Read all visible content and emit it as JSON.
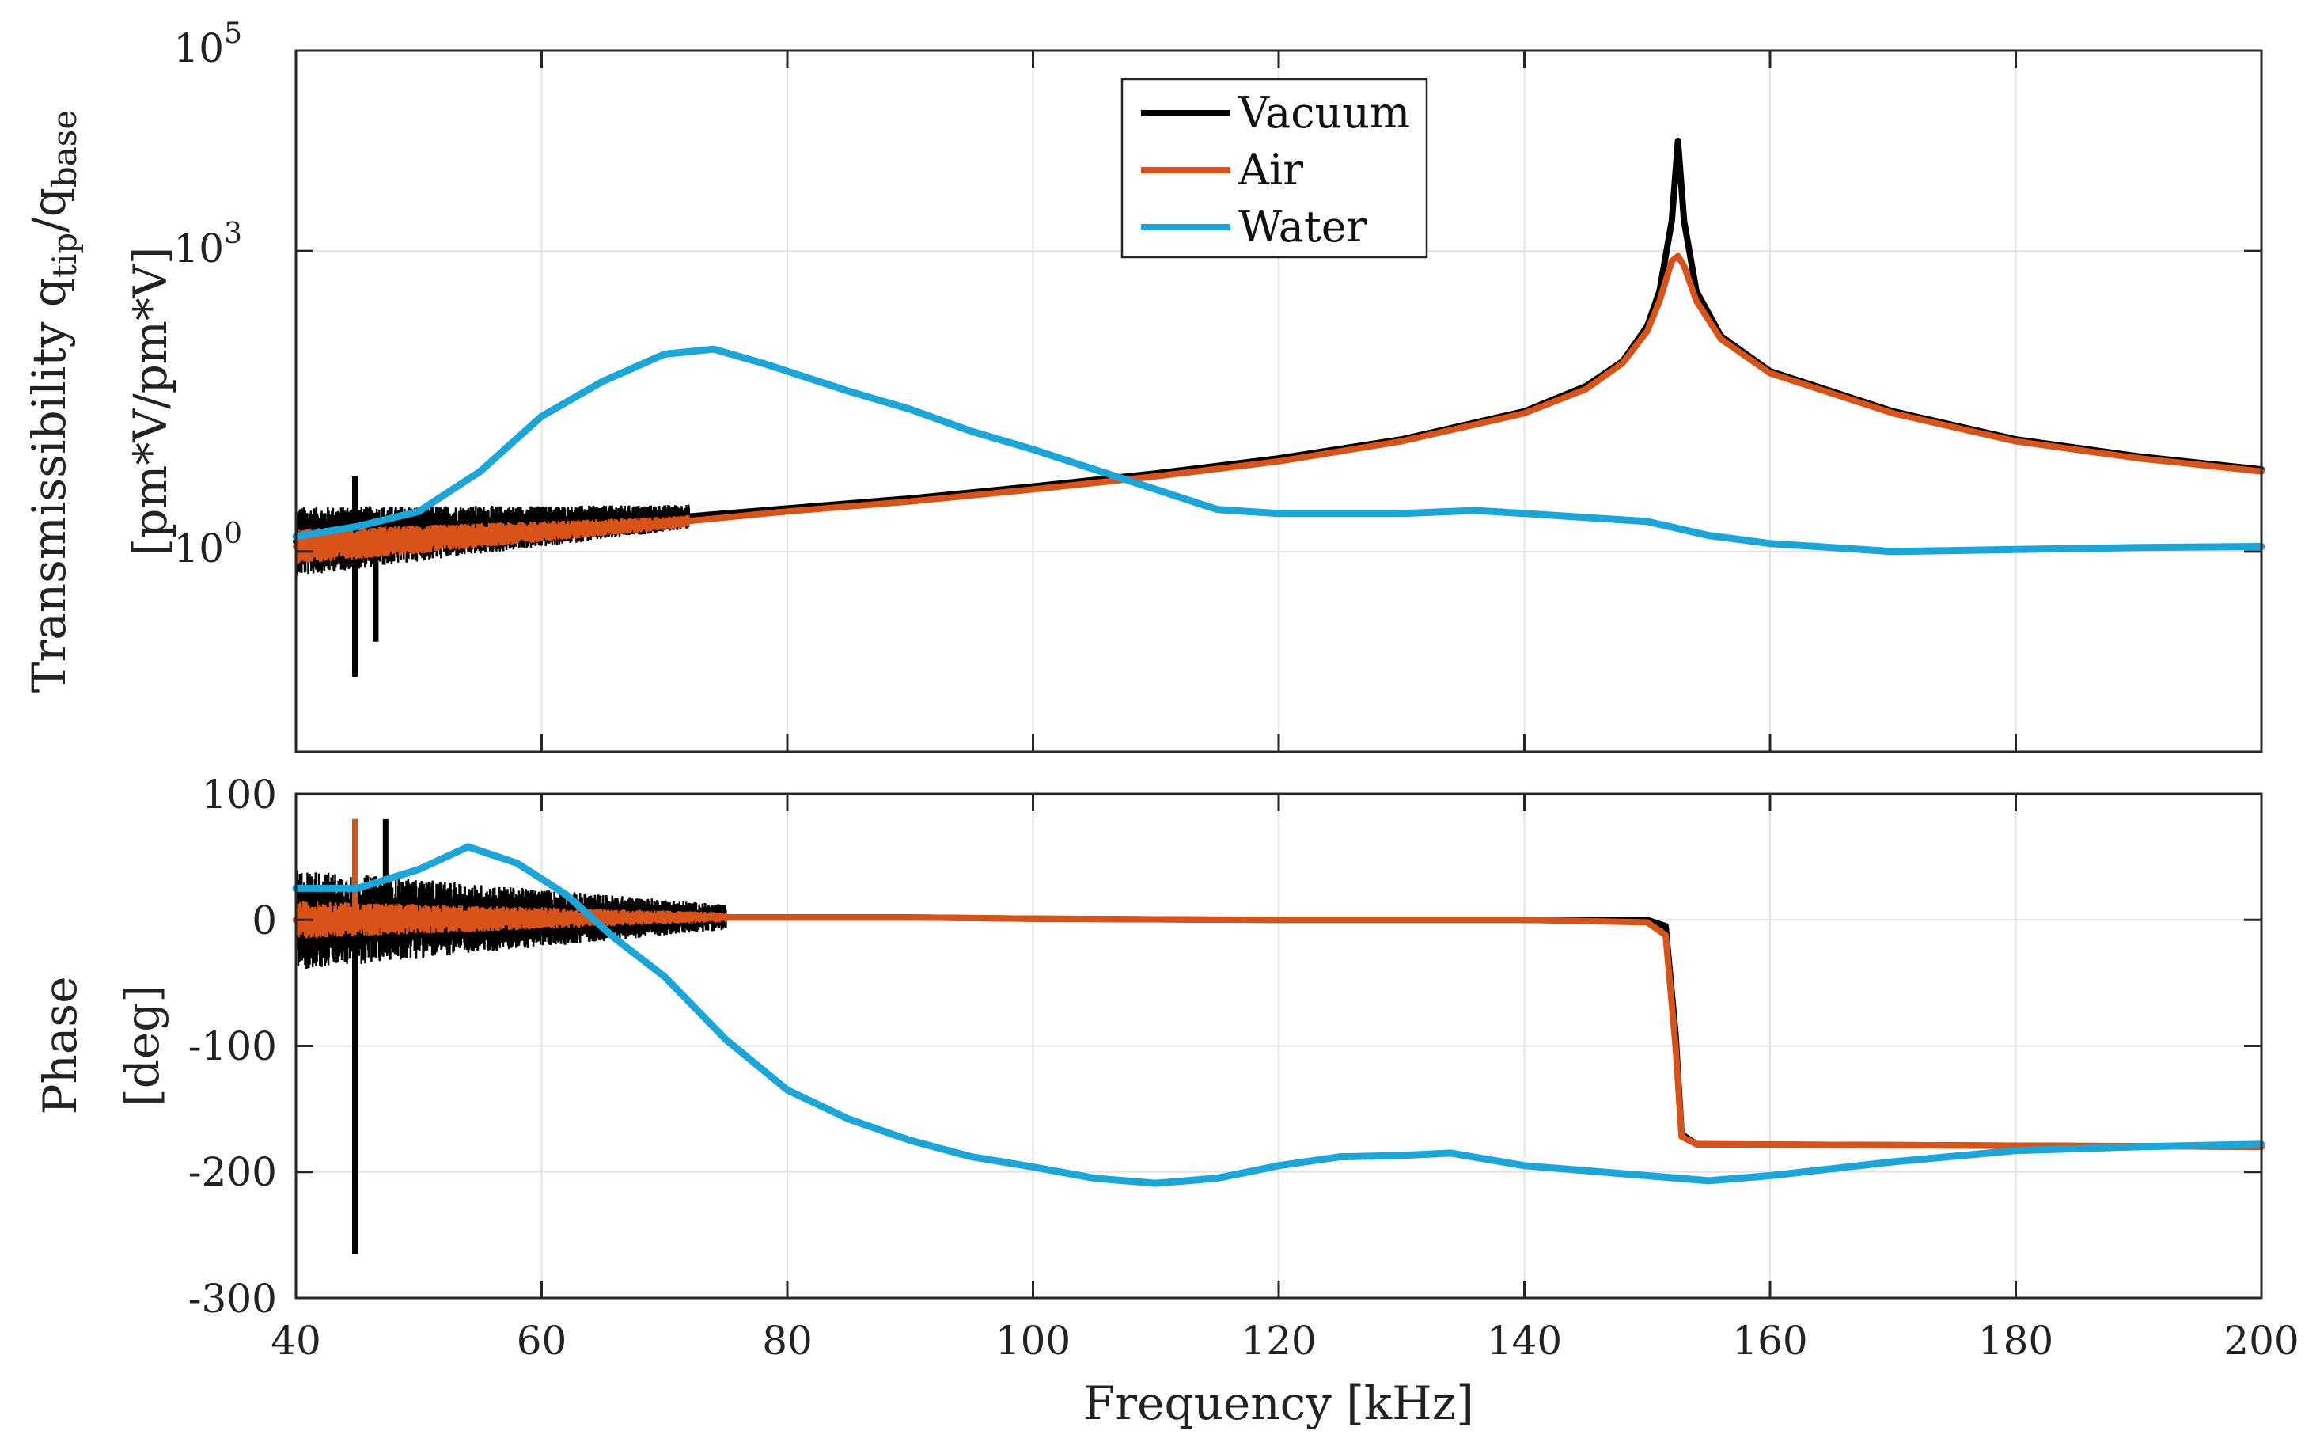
{
  "chart_data": [
    {
      "type": "line",
      "panel": "magnitude",
      "yscale": "log",
      "xlim": [
        40,
        200
      ],
      "ylim_exp": [
        -2,
        5
      ],
      "x_ticks": [
        40,
        60,
        80,
        100,
        120,
        140,
        160,
        180,
        200
      ],
      "y_ticks": [
        {
          "base": "10",
          "exp": "0",
          "value_exp": 0
        },
        {
          "base": "10",
          "exp": "3",
          "value_exp": 3
        },
        {
          "base": "10",
          "exp": "5",
          "value_exp": 5
        }
      ],
      "grid": true,
      "ylabel_line1_prefix": "Transmissibility q",
      "ylabel_sub1": "tip",
      "ylabel_mid": "/q",
      "ylabel_sub2": "base",
      "ylabel_line2": "[pm*V/pm*V]",
      "legend": {
        "position": "top-center",
        "entries": [
          {
            "label": "Vacuum",
            "color": "#000000"
          },
          {
            "label": "Air",
            "color": "#d95319"
          },
          {
            "label": "Water",
            "color": "#1aa6d8"
          }
        ]
      },
      "series": [
        {
          "name": "Vacuum",
          "color": "#000000",
          "noise_until_x": 72,
          "noise_amp_exp": [
            0.35,
            0.12
          ],
          "spikes": [
            [
              44.8,
              -1.25
            ],
            [
              46.5,
              -0.9
            ],
            [
              44.8,
              0.75
            ]
          ],
          "points": [
            [
              40,
              0.1
            ],
            [
              50,
              0.18
            ],
            [
              60,
              0.25
            ],
            [
              70,
              0.33
            ],
            [
              80,
              0.43
            ],
            [
              90,
              0.53
            ],
            [
              100,
              0.65
            ],
            [
              110,
              0.78
            ],
            [
              120,
              0.93
            ],
            [
              130,
              1.12
            ],
            [
              140,
              1.4
            ],
            [
              145,
              1.65
            ],
            [
              148,
              1.9
            ],
            [
              150,
              2.25
            ],
            [
              151,
              2.6
            ],
            [
              152,
              3.3
            ],
            [
              152.5,
              4.1
            ],
            [
              153,
              3.3
            ],
            [
              154,
              2.6
            ],
            [
              156,
              2.15
            ],
            [
              160,
              1.8
            ],
            [
              170,
              1.4
            ],
            [
              180,
              1.12
            ],
            [
              190,
              0.95
            ],
            [
              200,
              0.82
            ]
          ]
        },
        {
          "name": "Air",
          "color": "#d95319",
          "noise_until_x": 72,
          "noise_amp_exp": [
            0.18,
            0.06
          ],
          "spikes": [],
          "points": [
            [
              40,
              0.05
            ],
            [
              50,
              0.12
            ],
            [
              60,
              0.2
            ],
            [
              70,
              0.28
            ],
            [
              80,
              0.4
            ],
            [
              90,
              0.5
            ],
            [
              100,
              0.62
            ],
            [
              110,
              0.75
            ],
            [
              120,
              0.9
            ],
            [
              130,
              1.1
            ],
            [
              140,
              1.38
            ],
            [
              145,
              1.62
            ],
            [
              148,
              1.88
            ],
            [
              150,
              2.2
            ],
            [
              151,
              2.5
            ],
            [
              152,
              2.9
            ],
            [
              152.5,
              2.95
            ],
            [
              153,
              2.85
            ],
            [
              154,
              2.5
            ],
            [
              156,
              2.12
            ],
            [
              160,
              1.78
            ],
            [
              170,
              1.38
            ],
            [
              180,
              1.1
            ],
            [
              190,
              0.93
            ],
            [
              200,
              0.8
            ]
          ]
        },
        {
          "name": "Water",
          "color": "#1aa6d8",
          "noise_until_x": 0,
          "noise_amp_exp": [
            0,
            0
          ],
          "spikes": [],
          "points": [
            [
              40,
              0.15
            ],
            [
              45,
              0.25
            ],
            [
              50,
              0.4
            ],
            [
              55,
              0.8
            ],
            [
              60,
              1.35
            ],
            [
              65,
              1.7
            ],
            [
              70,
              1.97
            ],
            [
              74,
              2.02
            ],
            [
              78,
              1.88
            ],
            [
              85,
              1.6
            ],
            [
              90,
              1.42
            ],
            [
              95,
              1.2
            ],
            [
              100,
              1.02
            ],
            [
              105,
              0.82
            ],
            [
              110,
              0.62
            ],
            [
              115,
              0.42
            ],
            [
              120,
              0.38
            ],
            [
              130,
              0.38
            ],
            [
              136,
              0.41
            ],
            [
              140,
              0.38
            ],
            [
              150,
              0.3
            ],
            [
              155,
              0.16
            ],
            [
              160,
              0.08
            ],
            [
              170,
              0.0
            ],
            [
              180,
              0.02
            ],
            [
              190,
              0.04
            ],
            [
              200,
              0.05
            ]
          ]
        }
      ]
    },
    {
      "type": "line",
      "panel": "phase",
      "xlim": [
        40,
        200
      ],
      "ylim": [
        -300,
        100
      ],
      "x_ticks": [
        40,
        60,
        80,
        100,
        120,
        140,
        160,
        180,
        200
      ],
      "y_ticks": [
        100,
        0,
        -100,
        -200,
        -300
      ],
      "y_tick_labels": [
        "100",
        "0",
        "-100",
        "-200",
        "-300"
      ],
      "grid": true,
      "ylabel_line1": "Phase",
      "ylabel_line2": "[deg]",
      "xlabel": "Frequency [kHz]",
      "series": [
        {
          "name": "Vacuum",
          "color": "#000000",
          "noise_until_x": 75,
          "noise_amp": [
            40,
            10
          ],
          "spikes": [
            [
              44.8,
              -265
            ],
            [
              44.8,
              80
            ],
            [
              47.3,
              80
            ]
          ],
          "points": [
            [
              40,
              0
            ],
            [
              70,
              2
            ],
            [
              90,
              2
            ],
            [
              100,
              1
            ],
            [
              120,
              0
            ],
            [
              140,
              0
            ],
            [
              150,
              0
            ],
            [
              151.5,
              -5
            ],
            [
              152.3,
              -90
            ],
            [
              152.8,
              -170
            ],
            [
              154,
              -178
            ],
            [
              200,
              -180
            ]
          ]
        },
        {
          "name": "Air",
          "color": "#d95319",
          "noise_until_x": 75,
          "noise_amp": [
            15,
            4
          ],
          "spikes": [
            [
              44.8,
              80
            ]
          ],
          "points": [
            [
              40,
              0
            ],
            [
              70,
              2
            ],
            [
              90,
              2
            ],
            [
              100,
              1
            ],
            [
              120,
              0
            ],
            [
              140,
              0
            ],
            [
              150,
              -2
            ],
            [
              151.5,
              -12
            ],
            [
              152.3,
              -100
            ],
            [
              152.8,
              -172
            ],
            [
              154,
              -178
            ],
            [
              200,
              -180
            ]
          ]
        },
        {
          "name": "Water",
          "color": "#1aa6d8",
          "noise_until_x": 0,
          "noise_amp": [
            0,
            0
          ],
          "spikes": [],
          "points": [
            [
              40,
              25
            ],
            [
              45,
              25
            ],
            [
              50,
              40
            ],
            [
              54,
              58
            ],
            [
              58,
              45
            ],
            [
              62,
              20
            ],
            [
              66,
              -15
            ],
            [
              70,
              -45
            ],
            [
              75,
              -95
            ],
            [
              80,
              -135
            ],
            [
              85,
              -158
            ],
            [
              90,
              -175
            ],
            [
              95,
              -188
            ],
            [
              100,
              -196
            ],
            [
              105,
              -205
            ],
            [
              110,
              -209
            ],
            [
              115,
              -205
            ],
            [
              120,
              -195
            ],
            [
              125,
              -188
            ],
            [
              130,
              -187
            ],
            [
              134,
              -185
            ],
            [
              140,
              -195
            ],
            [
              150,
              -203
            ],
            [
              155,
              -207
            ],
            [
              160,
              -203
            ],
            [
              170,
              -192
            ],
            [
              180,
              -183
            ],
            [
              190,
              -180
            ],
            [
              200,
              -178
            ]
          ]
        }
      ]
    }
  ]
}
